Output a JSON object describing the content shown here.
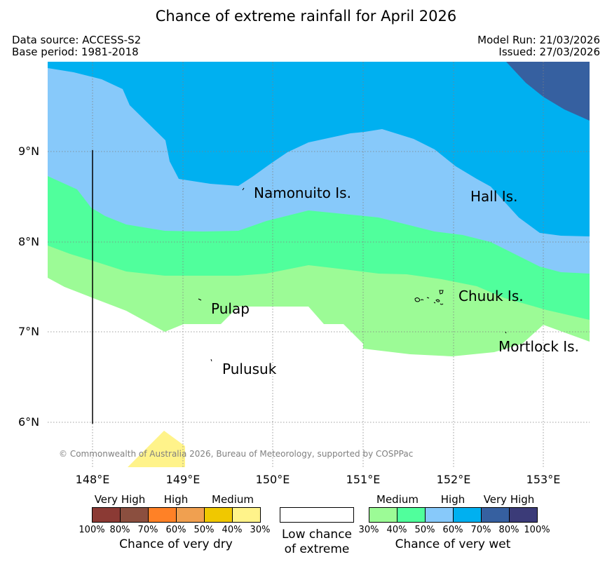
{
  "title": "Chance of extreme rainfall for April 2026",
  "info": {
    "data_source": "Data source: ACCESS-S2",
    "base_period": "Base period: 1981-2018",
    "model_run": "Model Run: 21/03/2026",
    "issued": "Issued: 27/03/2026"
  },
  "axes": {
    "lat_labels": [
      "9°N",
      "8°N",
      "7°N",
      "6°N"
    ],
    "lon_labels": [
      "148°E",
      "149°E",
      "150°E",
      "151°E",
      "152°E",
      "153°E"
    ]
  },
  "places": {
    "namonuito": "Namonuito Is.",
    "hall": "Hall Is.",
    "pulap": "Pulap",
    "chuuk": "Chuuk Is.",
    "mortlock": "Mortlock Is.",
    "pulusuk": "Pulusuk"
  },
  "copyright": "© Commonwealth of Australia 2026, Bureau of Meteorology, supported by COSPPac",
  "legend": {
    "dry": {
      "headers": [
        "Very High",
        "High",
        "Medium"
      ],
      "ticks": [
        "100%",
        "80%",
        "70%",
        "60%",
        "50%",
        "40%",
        "30%"
      ],
      "caption": "Chance of very dry",
      "colors": [
        "#8b3a34",
        "#8b4f3f",
        "#ff8126",
        "#f0a050",
        "#f0c800",
        "#fff38a"
      ]
    },
    "neutral": {
      "caption_line1": "Low chance",
      "caption_line2": "of extreme",
      "color": "#ffffff"
    },
    "wet": {
      "headers": [
        "Medium",
        "High",
        "Very High"
      ],
      "ticks": [
        "30%",
        "40%",
        "50%",
        "60%",
        "70%",
        "80%",
        "100%"
      ],
      "caption": "Chance of very wet",
      "colors": [
        "#9cfb96",
        "#50ff9c",
        "#87c9fa",
        "#00b0f0",
        "#3660a0",
        "#3b3b78"
      ]
    }
  }
}
